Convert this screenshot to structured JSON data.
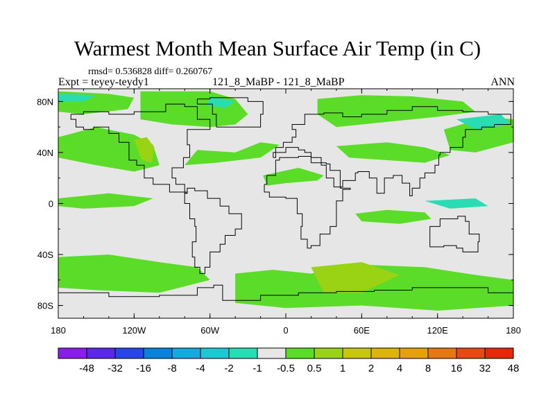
{
  "title": "Warmest Month Mean Surface Air Temp (in C)",
  "stats": "rmsd= 0.536828 diff= 0.260767",
  "subtitle_left": "Expt = teyey-teydy1",
  "subtitle_center": "121_8_MaBP - 121_8_MaBP",
  "subtitle_right": "ANN",
  "axes": {
    "lon_range": [
      -180,
      180
    ],
    "lat_range": [
      -90,
      90
    ],
    "x_ticks": [
      {
        "lon": -180,
        "label": "180"
      },
      {
        "lon": -120,
        "label": "120W"
      },
      {
        "lon": -60,
        "label": "60W"
      },
      {
        "lon": 0,
        "label": "0"
      },
      {
        "lon": 60,
        "label": "60E"
      },
      {
        "lon": 120,
        "label": "120E"
      },
      {
        "lon": 180,
        "label": "180"
      }
    ],
    "y_ticks": [
      {
        "lat": 80,
        "label": "80N"
      },
      {
        "lat": 40,
        "label": "40N"
      },
      {
        "lat": 0,
        "label": "0"
      },
      {
        "lat": -40,
        "label": "40S"
      },
      {
        "lat": -80,
        "label": "80S"
      }
    ]
  },
  "colorbar": {
    "colors": [
      "#8a1ee6",
      "#5a28e6",
      "#2846e6",
      "#0a82dc",
      "#14aadc",
      "#1ec8d2",
      "#28dcb4",
      "#e6e6e6",
      "#5adc28",
      "#9ad214",
      "#c8c80a",
      "#dcb40a",
      "#e6a00a",
      "#e67814",
      "#e64a14",
      "#e6280a"
    ],
    "labels": [
      "-48",
      "-32",
      "-16",
      "-8",
      "-4",
      "-2",
      "-1",
      "-0.5",
      "0.5",
      "1",
      "2",
      "4",
      "8",
      "16",
      "32",
      "48"
    ]
  },
  "chart_data": {
    "type": "heatmap",
    "title": "Warmest Month Mean Surface Air Temp (in C)",
    "projection": "cylindrical equidistant",
    "levels": [
      -48,
      -32,
      -16,
      -8,
      -4,
      -2,
      -1,
      -0.5,
      0.5,
      1,
      2,
      4,
      8,
      16,
      32,
      48
    ],
    "units": "C",
    "background_class": "-0.5 to 0.5",
    "regions": [
      {
        "name": "north-pacific-band",
        "class": "0.5 to 1",
        "polygon": [
          [
            -180,
            52
          ],
          [
            -150,
            60
          ],
          [
            -120,
            54
          ],
          [
            -105,
            46
          ],
          [
            -100,
            30
          ],
          [
            -120,
            25
          ],
          [
            -150,
            30
          ],
          [
            -180,
            36
          ]
        ]
      },
      {
        "name": "north-pacific-core",
        "class": "1 to 2",
        "polygon": [
          [
            -120,
            50
          ],
          [
            -110,
            52
          ],
          [
            -104,
            44
          ],
          [
            -106,
            32
          ],
          [
            -114,
            34
          ]
        ]
      },
      {
        "name": "arctic-west-strip",
        "class": "0.5 to 1",
        "polygon": [
          [
            -180,
            88
          ],
          [
            -140,
            86
          ],
          [
            -120,
            83
          ],
          [
            -125,
            74
          ],
          [
            -160,
            70
          ],
          [
            -180,
            72
          ]
        ]
      },
      {
        "name": "north-america",
        "class": "0.5 to 1",
        "polygon": [
          [
            -115,
            88
          ],
          [
            -60,
            88
          ],
          [
            -40,
            82
          ],
          [
            -30,
            70
          ],
          [
            -40,
            62
          ],
          [
            -60,
            60
          ],
          [
            -90,
            62
          ],
          [
            -115,
            66
          ]
        ]
      },
      {
        "name": "north-atlantic",
        "class": "0.5 to 1",
        "polygon": [
          [
            -70,
            42
          ],
          [
            -40,
            40
          ],
          [
            -20,
            48
          ],
          [
            -5,
            46
          ],
          [
            -20,
            36
          ],
          [
            -55,
            32
          ],
          [
            -80,
            30
          ]
        ]
      },
      {
        "name": "tropical-pacific",
        "class": "0.5 to 1",
        "polygon": [
          [
            -180,
            4
          ],
          [
            -140,
            8
          ],
          [
            -105,
            4
          ],
          [
            -120,
            -2
          ],
          [
            -160,
            -4
          ],
          [
            -180,
            -2
          ]
        ]
      },
      {
        "name": "indian-ocean",
        "class": "0.5 to 1",
        "polygon": [
          [
            55,
            -8
          ],
          [
            80,
            -5
          ],
          [
            110,
            -7
          ],
          [
            115,
            -12
          ],
          [
            90,
            -16
          ],
          [
            60,
            -14
          ]
        ]
      },
      {
        "name": "africa-north",
        "class": "0.5 to 1",
        "polygon": [
          [
            -18,
            22
          ],
          [
            10,
            28
          ],
          [
            30,
            22
          ],
          [
            25,
            18
          ],
          [
            0,
            16
          ],
          [
            -15,
            14
          ]
        ]
      },
      {
        "name": "eurasia-north",
        "class": "0.5 to 1",
        "polygon": [
          [
            25,
            82
          ],
          [
            60,
            85
          ],
          [
            100,
            84
          ],
          [
            140,
            80
          ],
          [
            150,
            72
          ],
          [
            120,
            68
          ],
          [
            80,
            64
          ],
          [
            40,
            60
          ],
          [
            25,
            70
          ]
        ]
      },
      {
        "name": "asia-central",
        "class": "0.5 to 1",
        "polygon": [
          [
            40,
            45
          ],
          [
            80,
            48
          ],
          [
            110,
            44
          ],
          [
            130,
            38
          ],
          [
            110,
            32
          ],
          [
            80,
            34
          ],
          [
            50,
            36
          ]
        ]
      },
      {
        "name": "nw-pacific",
        "class": "0.5 to 1",
        "polygon": [
          [
            125,
            58
          ],
          [
            160,
            68
          ],
          [
            180,
            66
          ],
          [
            180,
            48
          ],
          [
            150,
            40
          ],
          [
            130,
            42
          ]
        ]
      },
      {
        "name": "southern-ocean-west",
        "class": "0.5 to 1",
        "polygon": [
          [
            -180,
            -42
          ],
          [
            -140,
            -40
          ],
          [
            -100,
            -46
          ],
          [
            -70,
            -50
          ],
          [
            -60,
            -60
          ],
          [
            -100,
            -70
          ],
          [
            -150,
            -68
          ],
          [
            -180,
            -66
          ]
        ]
      },
      {
        "name": "southern-ocean-mid",
        "class": "0.5 to 1",
        "polygon": [
          [
            -40,
            -55
          ],
          [
            -10,
            -52
          ],
          [
            20,
            -55
          ],
          [
            60,
            -48
          ],
          [
            110,
            -50
          ],
          [
            150,
            -56
          ],
          [
            180,
            -60
          ],
          [
            180,
            -80
          ],
          [
            120,
            -84
          ],
          [
            60,
            -80
          ],
          [
            0,
            -82
          ],
          [
            -40,
            -78
          ]
        ]
      },
      {
        "name": "southern-ocean-core",
        "class": "1 to 2",
        "polygon": [
          [
            20,
            -50
          ],
          [
            60,
            -46
          ],
          [
            90,
            -56
          ],
          [
            60,
            -70
          ],
          [
            30,
            -70
          ]
        ]
      },
      {
        "name": "cyan-arctic",
        "class": "-1 to -0.5",
        "polygon": [
          [
            -180,
            86
          ],
          [
            -150,
            85
          ],
          [
            -160,
            80
          ],
          [
            -180,
            80
          ]
        ]
      },
      {
        "name": "cyan-greenland",
        "class": "-1 to -0.5",
        "polygon": [
          [
            -60,
            84
          ],
          [
            -40,
            80
          ],
          [
            -48,
            75
          ],
          [
            -62,
            77
          ]
        ]
      },
      {
        "name": "cyan-east-asia",
        "class": "-1 to -0.5",
        "polygon": [
          [
            110,
            2
          ],
          [
            150,
            4
          ],
          [
            160,
            -2
          ],
          [
            130,
            -4
          ]
        ]
      },
      {
        "name": "cyan-arctic-east",
        "class": "-1 to -0.5",
        "polygon": [
          [
            135,
            66
          ],
          [
            170,
            70
          ],
          [
            178,
            62
          ],
          [
            150,
            58
          ]
        ]
      }
    ]
  }
}
